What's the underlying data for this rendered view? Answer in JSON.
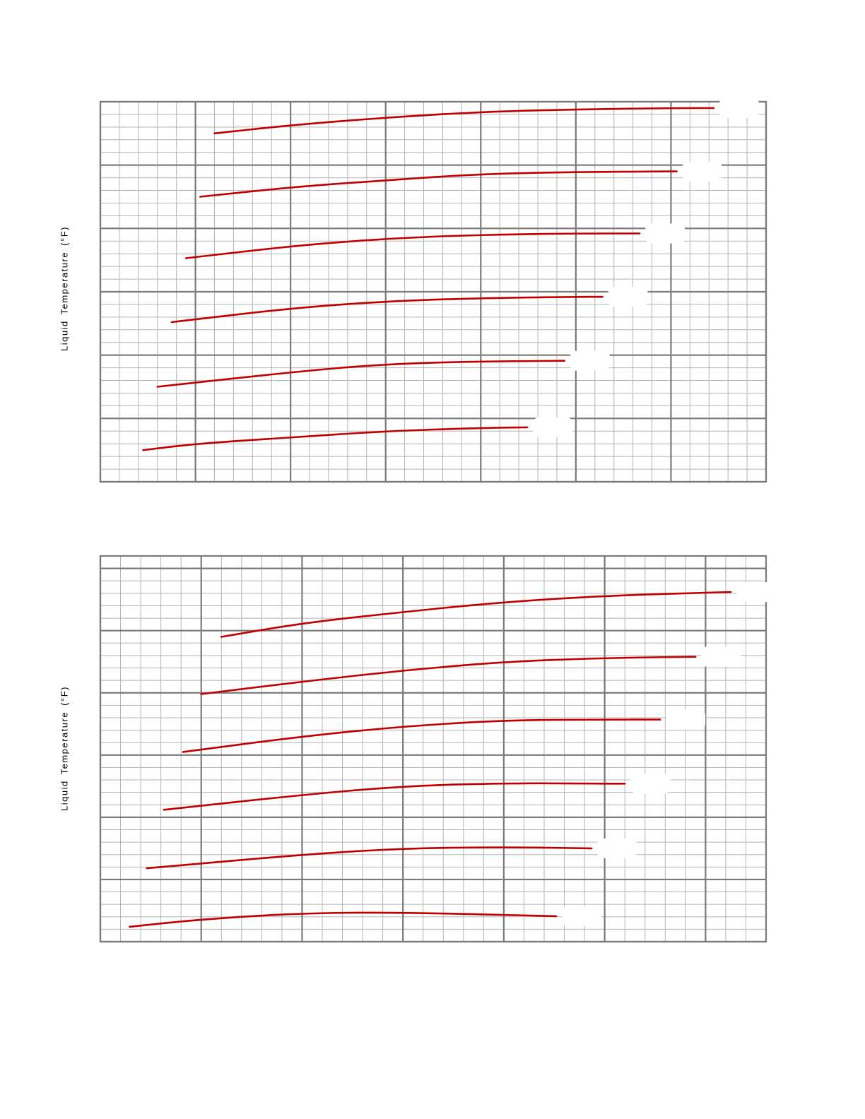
{
  "chart_data": [
    {
      "type": "line",
      "ylabel": "Liquid Temperature (°F)",
      "xlabel": "",
      "grid": true,
      "x_major_divisions": 7,
      "y_major_divisions": 6,
      "minor_per_major": 5,
      "xlim": [
        0,
        7
      ],
      "ylim": [
        0,
        6
      ],
      "line_color": "#c00000",
      "series": [
        {
          "x": [
            1.2,
            2.0,
            3.0,
            4.0,
            5.0,
            6.0,
            6.45
          ],
          "y": [
            5.5,
            5.63,
            5.75,
            5.84,
            5.88,
            5.9,
            5.9
          ]
        },
        {
          "x": [
            1.05,
            2.0,
            3.0,
            4.0,
            5.0,
            6.0,
            6.06
          ],
          "y": [
            4.5,
            4.65,
            4.76,
            4.86,
            4.89,
            4.9,
            4.9
          ]
        },
        {
          "x": [
            0.9,
            2.0,
            3.0,
            4.0,
            5.0,
            5.67
          ],
          "y": [
            3.53,
            3.72,
            3.84,
            3.9,
            3.92,
            3.92
          ]
        },
        {
          "x": [
            0.75,
            2.0,
            3.0,
            4.0,
            5.0,
            5.28
          ],
          "y": [
            2.52,
            2.74,
            2.85,
            2.9,
            2.92,
            2.92
          ]
        },
        {
          "x": [
            0.6,
            2.0,
            3.0,
            4.0,
            4.88
          ],
          "y": [
            1.5,
            1.73,
            1.86,
            1.9,
            1.91
          ]
        },
        {
          "x": [
            0.45,
            1.0,
            2.0,
            3.0,
            4.0,
            4.49
          ],
          "y": [
            0.5,
            0.6,
            0.7,
            0.8,
            0.85,
            0.86
          ]
        }
      ]
    },
    {
      "type": "line",
      "ylabel": "Liquid Temperature (°F)",
      "xlabel": "",
      "grid": true,
      "x_major_divisions": 6.6,
      "y_major_divisions": 6.2,
      "minor_per_major": 5,
      "xlim": [
        0,
        6.6
      ],
      "ylim": [
        0,
        6.2
      ],
      "line_color": "#c00000",
      "series": [
        {
          "x": [
            1.2,
            2.0,
            3.0,
            4.0,
            5.0,
            6.0,
            6.25
          ],
          "y": [
            4.9,
            5.12,
            5.3,
            5.46,
            5.56,
            5.61,
            5.62
          ]
        },
        {
          "x": [
            1.0,
            2.0,
            3.0,
            4.0,
            5.0,
            5.9
          ],
          "y": [
            3.98,
            4.18,
            4.36,
            4.5,
            4.56,
            4.58
          ]
        },
        {
          "x": [
            0.82,
            2.0,
            3.0,
            4.0,
            5.0,
            5.55
          ],
          "y": [
            3.05,
            3.3,
            3.46,
            3.56,
            3.57,
            3.57
          ]
        },
        {
          "x": [
            0.63,
            2.0,
            3.0,
            4.0,
            5.0,
            5.2
          ],
          "y": [
            2.12,
            2.36,
            2.5,
            2.55,
            2.54,
            2.54
          ]
        },
        {
          "x": [
            0.46,
            2.0,
            3.0,
            4.0,
            4.87
          ],
          "y": [
            1.18,
            1.4,
            1.5,
            1.52,
            1.5
          ]
        },
        {
          "x": [
            0.29,
            1.0,
            2.0,
            3.0,
            4.0,
            4.52
          ],
          "y": [
            0.24,
            0.36,
            0.46,
            0.47,
            0.43,
            0.41
          ]
        }
      ]
    }
  ]
}
